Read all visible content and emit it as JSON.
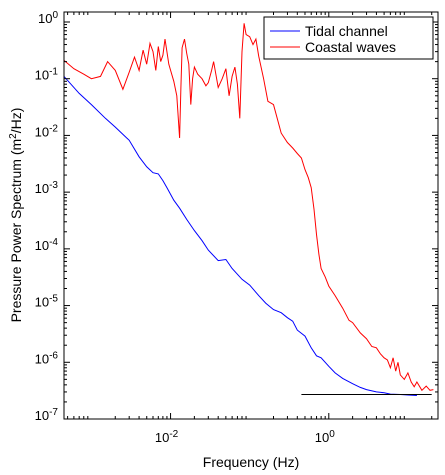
{
  "chart_data": {
    "type": "line",
    "title": "",
    "xlabel": "Frequency (Hz)",
    "ylabel_prefix": "Pressure Power Spectrum (m",
    "ylabel_sup": "2",
    "ylabel_suffix": "/Hz)",
    "x_scale": "log",
    "y_scale": "log",
    "xlim": [
      0.00045,
      24
    ],
    "ylim": [
      1e-07,
      1.5
    ],
    "grid": false,
    "legend_position": "top-right",
    "x_ticks": [
      {
        "value": 0.01,
        "base": "10",
        "exp": "-2"
      },
      {
        "value": 1,
        "base": "10",
        "exp": "0"
      }
    ],
    "y_ticks": [
      {
        "value": 1e-07,
        "base": "10",
        "exp": "-7"
      },
      {
        "value": 1e-06,
        "base": "10",
        "exp": "-6"
      },
      {
        "value": 1e-05,
        "base": "10",
        "exp": "-5"
      },
      {
        "value": 0.0001,
        "base": "10",
        "exp": "-4"
      },
      {
        "value": 0.001,
        "base": "10",
        "exp": "-3"
      },
      {
        "value": 0.01,
        "base": "10",
        "exp": "-2"
      },
      {
        "value": 0.1,
        "base": "10",
        "exp": "-1"
      },
      {
        "value": 1,
        "base": "10",
        "exp": "0"
      }
    ],
    "series": [
      {
        "name": "Tidal channel",
        "color": "#0000ff",
        "points": [
          [
            0.00045,
            0.11
          ],
          [
            0.0007,
            0.055
          ],
          [
            0.001,
            0.035
          ],
          [
            0.0015,
            0.02
          ],
          [
            0.002,
            0.014
          ],
          [
            0.003,
            0.0082
          ],
          [
            0.004,
            0.0042
          ],
          [
            0.005,
            0.0028
          ],
          [
            0.006,
            0.0022
          ],
          [
            0.007,
            0.0021
          ],
          [
            0.008,
            0.0016
          ],
          [
            0.009,
            0.0012
          ],
          [
            0.011,
            0.00072
          ],
          [
            0.013,
            0.00052
          ],
          [
            0.016,
            0.00033
          ],
          [
            0.02,
            0.00021
          ],
          [
            0.025,
            0.00014
          ],
          [
            0.03,
            9.5e-05
          ],
          [
            0.04,
            6.2e-05
          ],
          [
            0.05,
            6.5e-05
          ],
          [
            0.06,
            4.5e-05
          ],
          [
            0.08,
            2.9e-05
          ],
          [
            0.1,
            2.3e-05
          ],
          [
            0.13,
            1.5e-05
          ],
          [
            0.16,
            1.1e-05
          ],
          [
            0.2,
            8.5e-06
          ],
          [
            0.25,
            7.5e-06
          ],
          [
            0.3,
            6.1e-06
          ],
          [
            0.35,
            5.3e-06
          ],
          [
            0.4,
            3.7e-06
          ],
          [
            0.5,
            2.9e-06
          ],
          [
            0.6,
            1.8e-06
          ],
          [
            0.7,
            1.3e-06
          ],
          [
            0.8,
            1.2e-06
          ],
          [
            1.0,
            8.5e-07
          ],
          [
            1.2,
            6.5e-07
          ],
          [
            1.5,
            5.2e-07
          ],
          [
            2.0,
            4.2e-07
          ],
          [
            2.5,
            3.6e-07
          ],
          [
            3.0,
            3.3e-07
          ],
          [
            4.0,
            3e-07
          ],
          [
            5.0,
            2.9e-07
          ],
          [
            6.0,
            2.75e-07
          ],
          [
            8.0,
            2.7e-07
          ],
          [
            10.0,
            2.65e-07
          ],
          [
            13.0,
            2.6e-07
          ]
        ]
      },
      {
        "name": "Coastal waves",
        "color": "#ff0000",
        "points": [
          [
            0.00045,
            0.21
          ],
          [
            0.0006,
            0.15
          ],
          [
            0.0008,
            0.12
          ],
          [
            0.001,
            0.1
          ],
          [
            0.0013,
            0.11
          ],
          [
            0.0016,
            0.2
          ],
          [
            0.002,
            0.14
          ],
          [
            0.0025,
            0.065
          ],
          [
            0.003,
            0.13
          ],
          [
            0.0035,
            0.24
          ],
          [
            0.004,
            0.14
          ],
          [
            0.0045,
            0.32
          ],
          [
            0.005,
            0.18
          ],
          [
            0.0055,
            0.42
          ],
          [
            0.006,
            0.3
          ],
          [
            0.0065,
            0.14
          ],
          [
            0.007,
            0.37
          ],
          [
            0.0075,
            0.2
          ],
          [
            0.008,
            0.26
          ],
          [
            0.0085,
            0.5
          ],
          [
            0.009,
            0.3
          ],
          [
            0.0095,
            0.18
          ],
          [
            0.01,
            0.14
          ],
          [
            0.011,
            0.09
          ],
          [
            0.012,
            0.05
          ],
          [
            0.013,
            0.009
          ],
          [
            0.0135,
            0.07
          ],
          [
            0.014,
            0.35
          ],
          [
            0.015,
            0.5
          ],
          [
            0.016,
            0.28
          ],
          [
            0.017,
            0.18
          ],
          [
            0.018,
            0.035
          ],
          [
            0.019,
            0.1
          ],
          [
            0.02,
            0.16
          ],
          [
            0.022,
            0.12
          ],
          [
            0.025,
            0.1
          ],
          [
            0.028,
            0.075
          ],
          [
            0.03,
            0.085
          ],
          [
            0.033,
            0.14
          ],
          [
            0.035,
            0.2
          ],
          [
            0.04,
            0.07
          ],
          [
            0.045,
            0.1
          ],
          [
            0.05,
            0.15
          ],
          [
            0.055,
            0.05
          ],
          [
            0.06,
            0.11
          ],
          [
            0.065,
            0.16
          ],
          [
            0.07,
            0.08
          ],
          [
            0.075,
            0.02
          ],
          [
            0.08,
            0.3
          ],
          [
            0.085,
            0.95
          ],
          [
            0.09,
            0.6
          ],
          [
            0.1,
            0.55
          ],
          [
            0.11,
            0.4
          ],
          [
            0.12,
            0.5
          ],
          [
            0.13,
            0.25
          ],
          [
            0.15,
            0.1
          ],
          [
            0.17,
            0.04
          ],
          [
            0.2,
            0.035
          ],
          [
            0.25,
            0.011
          ],
          [
            0.3,
            0.0075
          ],
          [
            0.35,
            0.006
          ],
          [
            0.4,
            0.0048
          ],
          [
            0.45,
            0.004
          ],
          [
            0.5,
            0.0025
          ],
          [
            0.55,
            0.0018
          ],
          [
            0.6,
            0.0012
          ],
          [
            0.65,
            0.0005
          ],
          [
            0.7,
            0.00018
          ],
          [
            0.75,
            8e-05
          ],
          [
            0.8,
            4.5e-05
          ],
          [
            0.9,
            3.2e-05
          ],
          [
            1.0,
            2.2e-05
          ],
          [
            1.2,
            1.5e-05
          ],
          [
            1.5,
            9e-06
          ],
          [
            1.8,
            5.5e-06
          ],
          [
            2.0,
            5e-06
          ],
          [
            2.5,
            3.3e-06
          ],
          [
            3.0,
            2.6e-06
          ],
          [
            3.5,
            1.9e-06
          ],
          [
            4.0,
            1.8e-06
          ],
          [
            4.5,
            1.4e-06
          ],
          [
            5.0,
            1.2e-06
          ],
          [
            5.5,
            1.1e-06
          ],
          [
            6.0,
            8e-07
          ],
          [
            6.5,
            1.2e-06
          ],
          [
            7.0,
            7e-07
          ],
          [
            7.5,
            1e-06
          ],
          [
            8.0,
            6e-07
          ],
          [
            9.0,
            5e-07
          ],
          [
            10.0,
            6.5e-07
          ],
          [
            11.0,
            4.5e-07
          ],
          [
            12.0,
            3.7e-07
          ],
          [
            13.0,
            4.5e-07
          ],
          [
            15.0,
            3.2e-07
          ],
          [
            17.0,
            3.8e-07
          ],
          [
            19.0,
            3.2e-07
          ],
          [
            21.0,
            3.3e-07
          ]
        ]
      },
      {
        "name": "",
        "color": "#000000",
        "points": [
          [
            0.45,
            2.7e-07
          ],
          [
            20.0,
            2.7e-07
          ]
        ]
      }
    ]
  }
}
